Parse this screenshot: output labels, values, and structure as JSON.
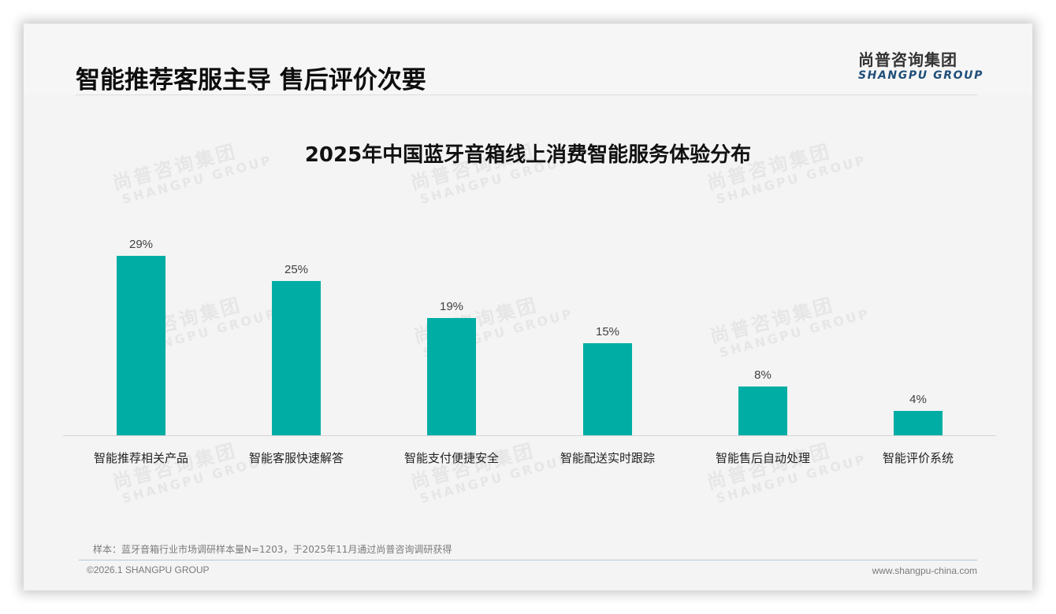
{
  "header": {
    "title": "智能推荐客服主导 售后评价次要",
    "logo_cn": "尚普咨询集团",
    "logo_en": "SHANGPU GROUP"
  },
  "watermark": {
    "cn": "尚普咨询集团",
    "en": "SHANGPU GROUP"
  },
  "chart_data": {
    "type": "bar",
    "title": "2025年中国蓝牙音箱线上消费智能服务体验分布",
    "categories": [
      "智能推荐相关产品",
      "智能客服快速解答",
      "智能支付便捷安全",
      "智能配送实时跟踪",
      "智能售后自动处理",
      "智能评价系统"
    ],
    "values": [
      29,
      25,
      19,
      15,
      8,
      4
    ],
    "value_labels": [
      "29%",
      "25%",
      "19%",
      "15%",
      "8%",
      "4%"
    ],
    "unit": "%",
    "xlabel": "",
    "ylabel": "",
    "ylim": [
      0,
      29
    ],
    "grid": false,
    "legend": "none",
    "bar_color": "#00ada5"
  },
  "footer": {
    "note": "样本：蓝牙音箱行业市场调研样本量N=1203，于2025年11月通过尚普咨询调研获得",
    "copyright": "©2026.1 SHANGPU GROUP",
    "website": "www.shangpu-china.com"
  }
}
